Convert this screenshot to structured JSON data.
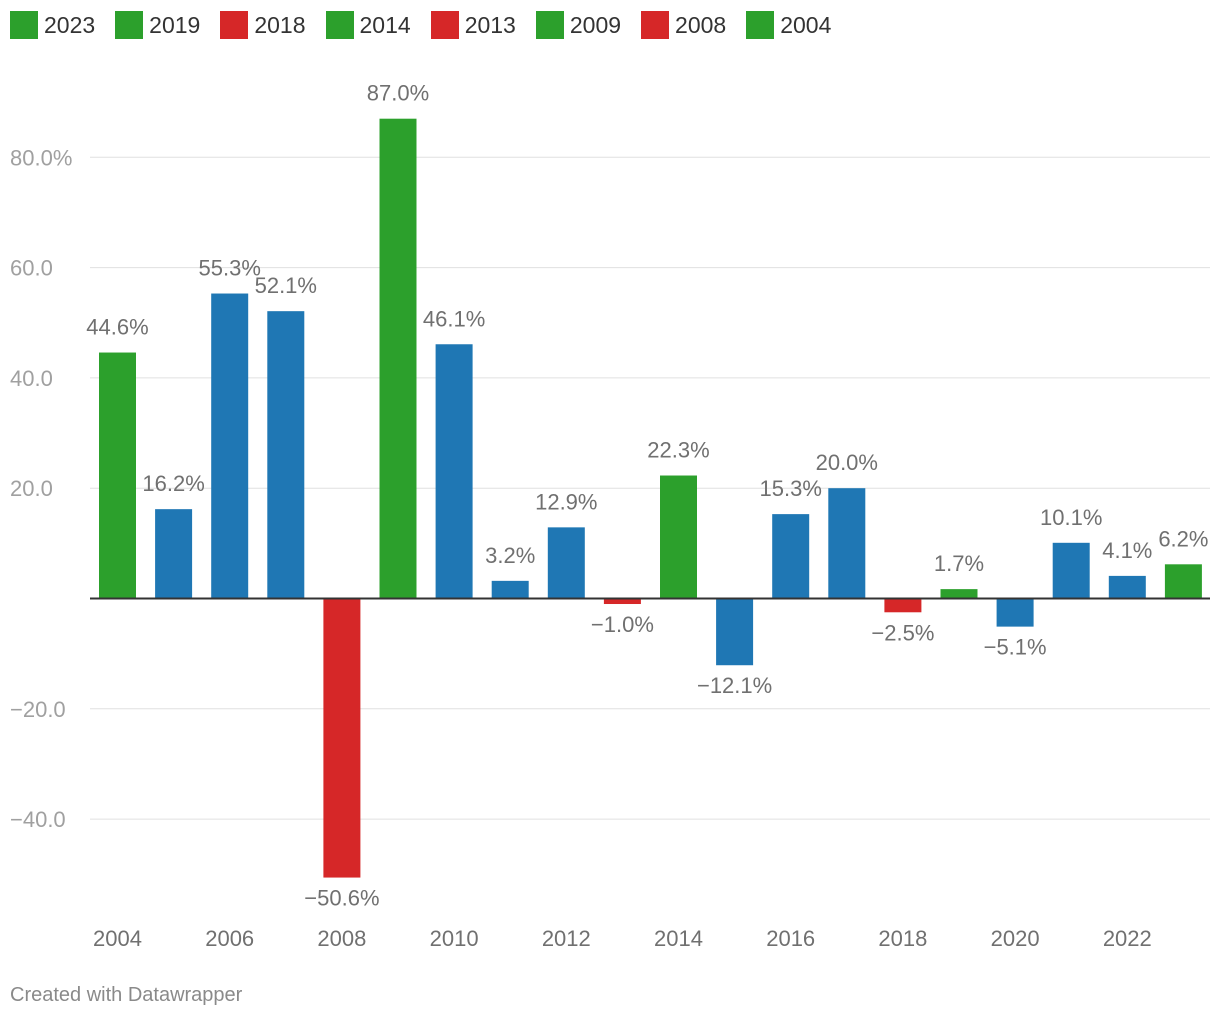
{
  "legend": [
    {
      "label": "2023",
      "color": "#2ca02c"
    },
    {
      "label": "2019",
      "color": "#2ca02c"
    },
    {
      "label": "2018",
      "color": "#d62728"
    },
    {
      "label": "2014",
      "color": "#2ca02c"
    },
    {
      "label": "2013",
      "color": "#d62728"
    },
    {
      "label": "2009",
      "color": "#2ca02c"
    },
    {
      "label": "2008",
      "color": "#d62728"
    },
    {
      "label": "2004",
      "color": "#2ca02c"
    }
  ],
  "chart_data": {
    "type": "bar",
    "categories": [
      "2004",
      "2005",
      "2006",
      "2007",
      "2008",
      "2009",
      "2010",
      "2011",
      "2012",
      "2013",
      "2014",
      "2015",
      "2016",
      "2017",
      "2018",
      "2019",
      "2020",
      "2021",
      "2022",
      "2023"
    ],
    "values": [
      44.6,
      16.2,
      55.3,
      52.1,
      -50.6,
      87.0,
      46.1,
      3.2,
      12.9,
      -1.0,
      22.3,
      -12.1,
      15.3,
      20.0,
      -2.5,
      1.7,
      -5.1,
      10.1,
      4.1,
      6.2
    ],
    "data_labels": [
      "44.6%",
      "16.2%",
      "55.3%",
      "52.1%",
      "−50.6%",
      "87.0%",
      "46.1%",
      "3.2%",
      "12.9%",
      "−1.0%",
      "22.3%",
      "−12.1%",
      "15.3%",
      "20.0%",
      "−2.5%",
      "1.7%",
      "−5.1%",
      "10.1%",
      "4.1%",
      "6.2%"
    ],
    "bar_colors": [
      "#2ca02c",
      "#1f77b4",
      "#1f77b4",
      "#1f77b4",
      "#d62728",
      "#2ca02c",
      "#1f77b4",
      "#1f77b4",
      "#1f77b4",
      "#d62728",
      "#2ca02c",
      "#1f77b4",
      "#1f77b4",
      "#1f77b4",
      "#d62728",
      "#2ca02c",
      "#1f77b4",
      "#1f77b4",
      "#1f77b4",
      "#2ca02c"
    ],
    "x_ticks": [
      "2004",
      "2006",
      "2008",
      "2010",
      "2012",
      "2014",
      "2016",
      "2018",
      "2020",
      "2022"
    ],
    "y_ticks": [
      {
        "value": 80,
        "label": "80.0%"
      },
      {
        "value": 60,
        "label": "60.0"
      },
      {
        "value": 40,
        "label": "40.0"
      },
      {
        "value": 20,
        "label": "20.0"
      },
      {
        "value": -20,
        "label": "−20.0"
      },
      {
        "value": -40,
        "label": "−40.0"
      }
    ],
    "ylim": [
      -55,
      90
    ],
    "title": "",
    "xlabel": "",
    "ylabel": "",
    "grid": true
  },
  "credit": "Created with Datawrapper"
}
